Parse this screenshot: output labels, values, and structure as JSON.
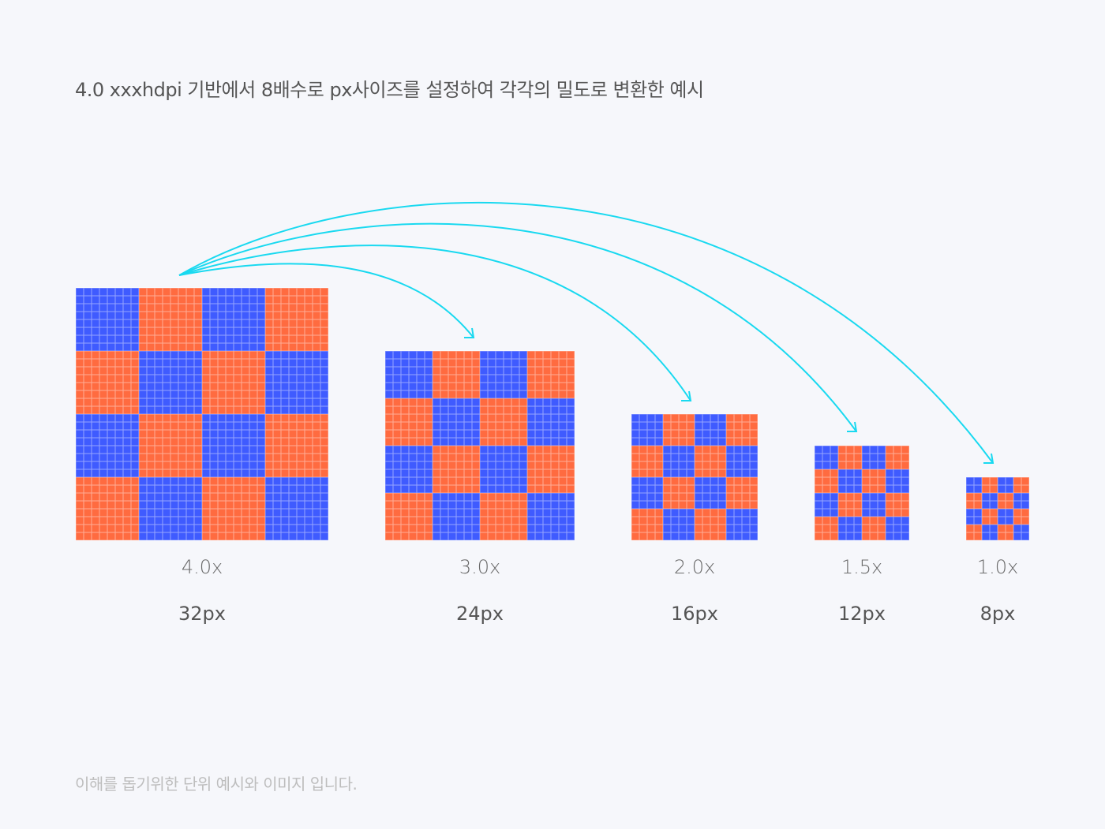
{
  "title": "4.0 xxxhdpi 기반에서 8배수로 px사이즈를 설정하여 각각의 밀도로 변환한 예시",
  "footer": "이해를 돕기위한 단위 예시와 이미지 입니다.",
  "colors": {
    "blue": "#3f5bff",
    "orange": "#ff6b40",
    "arrow": "#19d9f0",
    "grid_line": "#ffffff"
  },
  "items": [
    {
      "scale": "4.0x",
      "size": "32px"
    },
    {
      "scale": "3.0x",
      "size": "24px"
    },
    {
      "scale": "2.0x",
      "size": "16px"
    },
    {
      "scale": "1.5x",
      "size": "12px"
    },
    {
      "scale": "1.0x",
      "size": "8px"
    }
  ],
  "checker_blocks": 4
}
